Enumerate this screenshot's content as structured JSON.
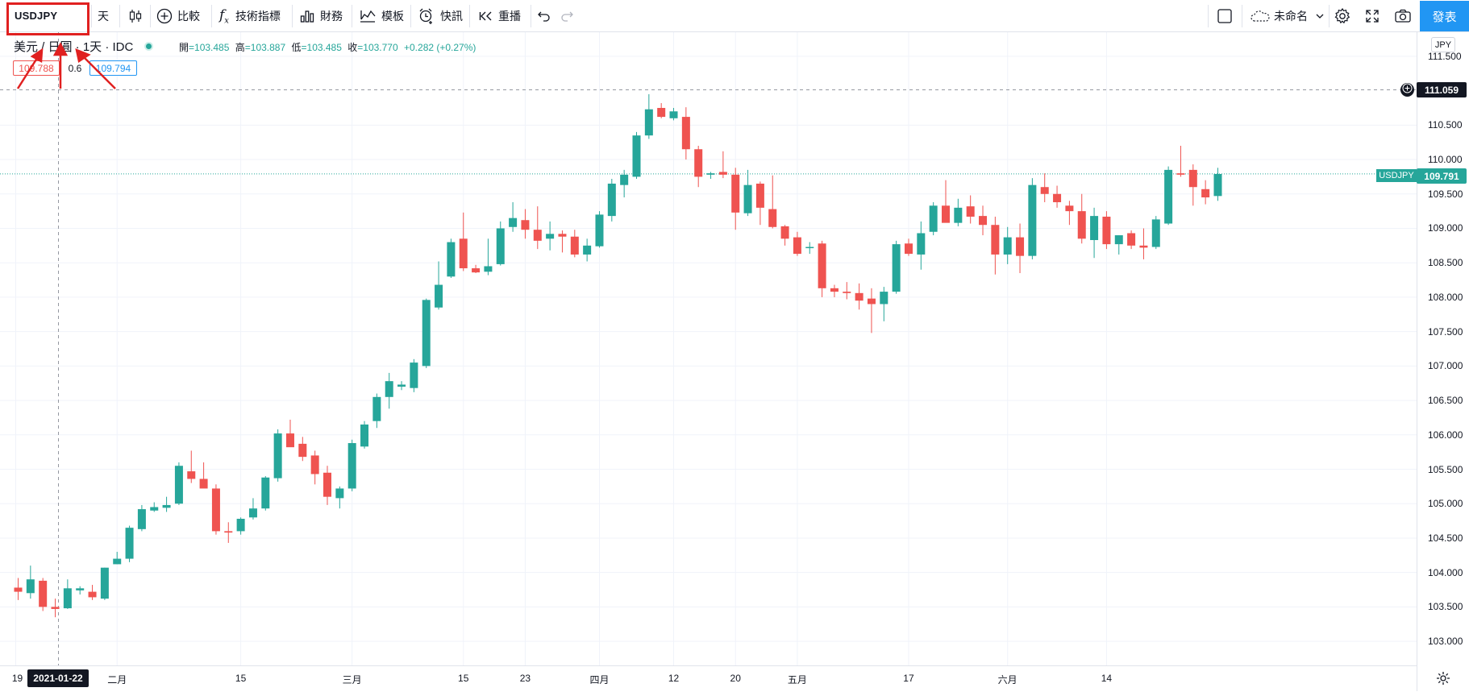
{
  "toolbar": {
    "symbol": "USDJPY",
    "interval": "天",
    "compare": "比較",
    "indicators": "技術指標",
    "financials": "財務",
    "templates": "模板",
    "alert": "快訊",
    "replay": "重播",
    "layout_name": "未命名",
    "publish": "發表"
  },
  "legend": {
    "title": "美元 / 日圓 · 1天 · IDC",
    "open_label": "開",
    "open": "=103.485",
    "high_label": "高",
    "high": "=103.887",
    "low_label": "低",
    "low": "=103.485",
    "close_label": "收",
    "close": "=103.770",
    "change": "+0.282 (+0.27%)",
    "bid": "109.788",
    "spread": "0.6",
    "ask": "109.794"
  },
  "price_axis": {
    "currency": "JPY",
    "labels": [
      "111.500",
      "110.500",
      "110.000",
      "109.500",
      "109.000",
      "108.500",
      "108.000",
      "107.500",
      "107.000",
      "106.500",
      "106.000",
      "105.500",
      "105.000",
      "104.500",
      "104.000",
      "103.500",
      "103.000"
    ],
    "crosshair_price": "111.059",
    "last_price_tag_symbol": "USDJPY",
    "last_price": "109.791"
  },
  "time_axis": {
    "labels": [
      "19",
      "二月",
      "15",
      "三月",
      "15",
      "23",
      "四月",
      "12",
      "20",
      "五月",
      "17",
      "六月",
      "14"
    ],
    "crosshair_date": "2021-01-22"
  },
  "colors": {
    "up": "#26a69a",
    "down": "#ef5350",
    "accent": "#2196f3",
    "annotation": "#e02020"
  },
  "icons": [
    "candles-icon",
    "plus-circle-icon",
    "fx-icon",
    "bar-chart-icon",
    "template-icon",
    "alarm-icon",
    "replay-icon",
    "undo-icon",
    "redo-icon",
    "square-icon",
    "cloud-icon",
    "chevron-down-icon",
    "gear-icon",
    "fullscreen-icon",
    "camera-icon",
    "plus-circle-small-icon",
    "settings-icon"
  ],
  "chart_data": {
    "type": "candlestick",
    "symbol": "USDJPY",
    "ylim": [
      102.65,
      111.85
    ],
    "candles": [
      {
        "o": 103.78,
        "h": 103.92,
        "l": 103.6,
        "c": 103.72
      },
      {
        "o": 103.7,
        "h": 104.1,
        "l": 103.62,
        "c": 103.9
      },
      {
        "o": 103.88,
        "h": 103.92,
        "l": 103.44,
        "c": 103.5
      },
      {
        "o": 103.5,
        "h": 103.62,
        "l": 103.35,
        "c": 103.47
      },
      {
        "o": 103.48,
        "h": 103.9,
        "l": 103.47,
        "c": 103.77
      },
      {
        "o": 103.74,
        "h": 103.8,
        "l": 103.68,
        "c": 103.77
      },
      {
        "o": 103.72,
        "h": 103.82,
        "l": 103.6,
        "c": 103.64
      },
      {
        "o": 103.62,
        "h": 104.07,
        "l": 103.6,
        "c": 104.07
      },
      {
        "o": 104.12,
        "h": 104.3,
        "l": 104.12,
        "c": 104.2
      },
      {
        "o": 104.2,
        "h": 104.68,
        "l": 104.15,
        "c": 104.65
      },
      {
        "o": 104.63,
        "h": 104.98,
        "l": 104.6,
        "c": 104.92
      },
      {
        "o": 104.9,
        "h": 105.02,
        "l": 104.88,
        "c": 104.95
      },
      {
        "o": 104.94,
        "h": 105.1,
        "l": 104.88,
        "c": 104.98
      },
      {
        "o": 105.0,
        "h": 105.6,
        "l": 104.98,
        "c": 105.55
      },
      {
        "o": 105.47,
        "h": 105.77,
        "l": 105.3,
        "c": 105.36
      },
      {
        "o": 105.36,
        "h": 105.6,
        "l": 105.23,
        "c": 105.22
      },
      {
        "o": 105.22,
        "h": 105.28,
        "l": 104.55,
        "c": 104.6
      },
      {
        "o": 104.6,
        "h": 104.73,
        "l": 104.43,
        "c": 104.58
      },
      {
        "o": 104.6,
        "h": 104.8,
        "l": 104.55,
        "c": 104.78
      },
      {
        "o": 104.8,
        "h": 105.08,
        "l": 104.77,
        "c": 104.93
      },
      {
        "o": 104.93,
        "h": 105.4,
        "l": 104.9,
        "c": 105.38
      },
      {
        "o": 105.37,
        "h": 106.08,
        "l": 105.32,
        "c": 106.02
      },
      {
        "o": 106.02,
        "h": 106.22,
        "l": 105.88,
        "c": 105.82
      },
      {
        "o": 105.87,
        "h": 105.97,
        "l": 105.62,
        "c": 105.68
      },
      {
        "o": 105.7,
        "h": 105.77,
        "l": 105.28,
        "c": 105.43
      },
      {
        "o": 105.45,
        "h": 105.55,
        "l": 104.98,
        "c": 105.1
      },
      {
        "o": 105.08,
        "h": 105.25,
        "l": 104.93,
        "c": 105.22
      },
      {
        "o": 105.22,
        "h": 105.93,
        "l": 105.18,
        "c": 105.88
      },
      {
        "o": 105.83,
        "h": 106.2,
        "l": 105.8,
        "c": 106.15
      },
      {
        "o": 106.2,
        "h": 106.6,
        "l": 106.1,
        "c": 106.55
      },
      {
        "o": 106.55,
        "h": 106.9,
        "l": 106.38,
        "c": 106.78
      },
      {
        "o": 106.7,
        "h": 106.78,
        "l": 106.65,
        "c": 106.73
      },
      {
        "o": 106.68,
        "h": 107.1,
        "l": 106.62,
        "c": 107.05
      },
      {
        "o": 107.0,
        "h": 107.98,
        "l": 106.97,
        "c": 107.96
      },
      {
        "o": 107.85,
        "h": 108.52,
        "l": 107.82,
        "c": 108.18
      },
      {
        "o": 108.3,
        "h": 108.85,
        "l": 108.28,
        "c": 108.8
      },
      {
        "o": 108.85,
        "h": 109.23,
        "l": 108.38,
        "c": 108.42
      },
      {
        "o": 108.42,
        "h": 108.47,
        "l": 108.35,
        "c": 108.36
      },
      {
        "o": 108.37,
        "h": 108.85,
        "l": 108.32,
        "c": 108.45
      },
      {
        "o": 108.48,
        "h": 109.1,
        "l": 108.46,
        "c": 109.0
      },
      {
        "o": 109.02,
        "h": 109.38,
        "l": 108.95,
        "c": 109.15
      },
      {
        "o": 109.12,
        "h": 109.28,
        "l": 108.85,
        "c": 108.98
      },
      {
        "o": 108.98,
        "h": 109.32,
        "l": 108.7,
        "c": 108.82
      },
      {
        "o": 108.85,
        "h": 109.1,
        "l": 108.68,
        "c": 108.92
      },
      {
        "o": 108.92,
        "h": 108.97,
        "l": 108.65,
        "c": 108.88
      },
      {
        "o": 108.88,
        "h": 108.98,
        "l": 108.58,
        "c": 108.62
      },
      {
        "o": 108.62,
        "h": 108.85,
        "l": 108.52,
        "c": 108.75
      },
      {
        "o": 108.74,
        "h": 109.25,
        "l": 108.72,
        "c": 109.2
      },
      {
        "o": 109.18,
        "h": 109.72,
        "l": 109.1,
        "c": 109.65
      },
      {
        "o": 109.63,
        "h": 109.85,
        "l": 109.45,
        "c": 109.78
      },
      {
        "o": 109.75,
        "h": 110.4,
        "l": 109.72,
        "c": 110.35
      },
      {
        "o": 110.35,
        "h": 110.95,
        "l": 110.3,
        "c": 110.73
      },
      {
        "o": 110.75,
        "h": 110.82,
        "l": 110.6,
        "c": 110.62
      },
      {
        "o": 110.6,
        "h": 110.75,
        "l": 110.57,
        "c": 110.7
      },
      {
        "o": 110.62,
        "h": 110.76,
        "l": 110.0,
        "c": 110.15
      },
      {
        "o": 110.15,
        "h": 110.2,
        "l": 109.6,
        "c": 109.75
      },
      {
        "o": 109.78,
        "h": 109.82,
        "l": 109.72,
        "c": 109.8
      },
      {
        "o": 109.82,
        "h": 110.12,
        "l": 109.73,
        "c": 109.78
      },
      {
        "o": 109.78,
        "h": 109.88,
        "l": 108.98,
        "c": 109.23
      },
      {
        "o": 109.22,
        "h": 109.85,
        "l": 109.18,
        "c": 109.63
      },
      {
        "o": 109.65,
        "h": 109.68,
        "l": 109.05,
        "c": 109.3
      },
      {
        "o": 109.28,
        "h": 109.77,
        "l": 109.0,
        "c": 109.02
      },
      {
        "o": 109.03,
        "h": 109.05,
        "l": 108.75,
        "c": 108.85
      },
      {
        "o": 108.87,
        "h": 108.95,
        "l": 108.6,
        "c": 108.63
      },
      {
        "o": 108.72,
        "h": 108.8,
        "l": 108.63,
        "c": 108.73
      },
      {
        "o": 108.78,
        "h": 108.82,
        "l": 108.0,
        "c": 108.13
      },
      {
        "o": 108.13,
        "h": 108.18,
        "l": 108.0,
        "c": 108.08
      },
      {
        "o": 108.08,
        "h": 108.22,
        "l": 107.97,
        "c": 108.06
      },
      {
        "o": 108.06,
        "h": 108.2,
        "l": 107.82,
        "c": 107.95
      },
      {
        "o": 107.98,
        "h": 108.13,
        "l": 107.48,
        "c": 107.9
      },
      {
        "o": 107.9,
        "h": 108.15,
        "l": 107.65,
        "c": 108.08
      },
      {
        "o": 108.08,
        "h": 108.82,
        "l": 108.05,
        "c": 108.77
      },
      {
        "o": 108.78,
        "h": 108.85,
        "l": 108.6,
        "c": 108.63
      },
      {
        "o": 108.62,
        "h": 109.1,
        "l": 108.4,
        "c": 108.93
      },
      {
        "o": 108.95,
        "h": 109.38,
        "l": 108.9,
        "c": 109.33
      },
      {
        "o": 109.33,
        "h": 109.7,
        "l": 109.13,
        "c": 109.08
      },
      {
        "o": 109.08,
        "h": 109.43,
        "l": 109.03,
        "c": 109.3
      },
      {
        "o": 109.32,
        "h": 109.48,
        "l": 109.07,
        "c": 109.17
      },
      {
        "o": 109.18,
        "h": 109.33,
        "l": 108.9,
        "c": 109.05
      },
      {
        "o": 109.05,
        "h": 109.17,
        "l": 108.33,
        "c": 108.62
      },
      {
        "o": 108.62,
        "h": 109.02,
        "l": 108.48,
        "c": 108.87
      },
      {
        "o": 108.87,
        "h": 109.07,
        "l": 108.35,
        "c": 108.6
      },
      {
        "o": 108.6,
        "h": 109.73,
        "l": 108.55,
        "c": 109.63
      },
      {
        "o": 109.6,
        "h": 109.8,
        "l": 109.38,
        "c": 109.5
      },
      {
        "o": 109.5,
        "h": 109.62,
        "l": 109.3,
        "c": 109.38
      },
      {
        "o": 109.33,
        "h": 109.4,
        "l": 109.05,
        "c": 109.25
      },
      {
        "o": 109.25,
        "h": 109.5,
        "l": 108.78,
        "c": 108.85
      },
      {
        "o": 108.83,
        "h": 109.3,
        "l": 108.57,
        "c": 109.18
      },
      {
        "o": 109.17,
        "h": 109.25,
        "l": 108.7,
        "c": 108.77
      },
      {
        "o": 108.77,
        "h": 108.9,
        "l": 108.62,
        "c": 108.9
      },
      {
        "o": 108.93,
        "h": 108.97,
        "l": 108.7,
        "c": 108.75
      },
      {
        "o": 108.75,
        "h": 109.0,
        "l": 108.55,
        "c": 108.72
      },
      {
        "o": 108.73,
        "h": 109.18,
        "l": 108.7,
        "c": 109.13
      },
      {
        "o": 109.07,
        "h": 109.9,
        "l": 109.05,
        "c": 109.85
      },
      {
        "o": 109.8,
        "h": 110.2,
        "l": 109.75,
        "c": 109.78
      },
      {
        "o": 109.85,
        "h": 109.93,
        "l": 109.33,
        "c": 109.6
      },
      {
        "o": 109.57,
        "h": 109.7,
        "l": 109.35,
        "c": 109.45
      },
      {
        "o": 109.47,
        "h": 109.88,
        "l": 109.4,
        "c": 109.79
      }
    ]
  }
}
